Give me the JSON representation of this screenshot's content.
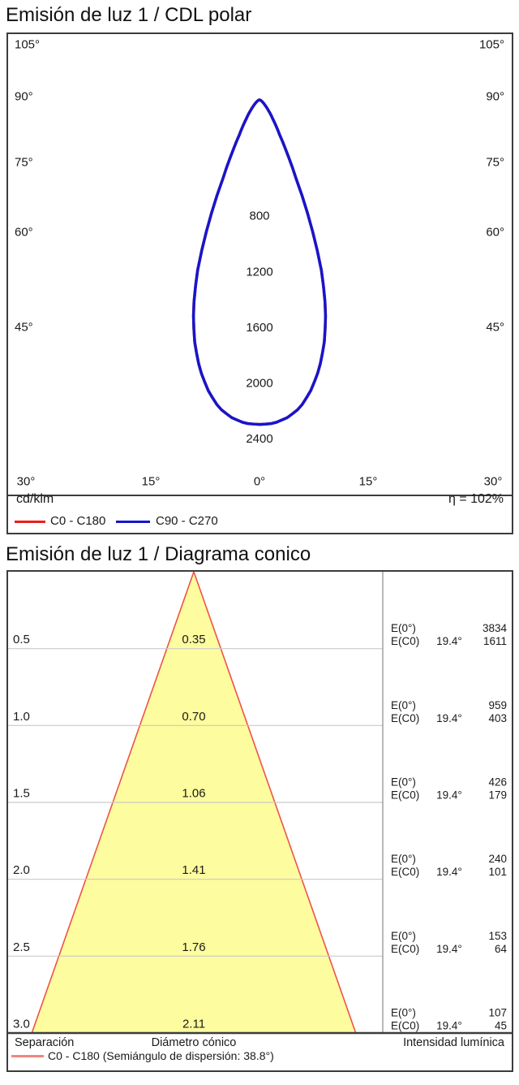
{
  "polar": {
    "title": "Emisión de luz 1 / CDL polar",
    "unit_label": "cd/klm",
    "efficiency_label": "η = 102%",
    "legend": [
      {
        "label": "C0 - C180",
        "color": "#ee1c1c"
      },
      {
        "label": "C90 - C270",
        "color": "#1616cc"
      }
    ],
    "angle_ticks": [
      "105°",
      "90°",
      "75°",
      "60°",
      "45°",
      "30°",
      "15°",
      "0°"
    ],
    "ring_labels": [
      "800",
      "1200",
      "1600",
      "2000",
      "2400"
    ],
    "chart_data": {
      "type": "line",
      "coordinate_system": "polar",
      "title": "Emisión de luz 1 / CDL polar",
      "radial_axis": {
        "unit": "cd/klm",
        "min": 0,
        "max": 2800,
        "ring_step": 400,
        "labeled_rings": [
          800,
          1200,
          1600,
          2000,
          2400
        ]
      },
      "angular_axis": {
        "unit": "deg",
        "tick_step": 15,
        "labeled_ticks": [
          0,
          15,
          30,
          45,
          60,
          75,
          90,
          105
        ]
      },
      "efficiency_percent": 102,
      "series": [
        {
          "name": "C0 - C180",
          "color": "#ee1c1c",
          "gamma_deg": [
            0,
            2.5,
            5,
            7.5,
            10,
            12.5,
            15,
            17.5,
            20,
            22.5,
            25,
            27.5,
            30,
            32.5,
            35,
            40,
            45,
            50,
            55,
            60,
            65,
            70,
            75,
            80,
            85,
            90
          ],
          "cd_per_klm": [
            2330,
            2325,
            2290,
            2230,
            2120,
            1980,
            1800,
            1580,
            1300,
            950,
            620,
            420,
            290,
            220,
            165,
            100,
            62,
            40,
            27,
            18,
            12,
            8,
            5,
            3,
            1.5,
            0
          ]
        },
        {
          "name": "C90 - C270",
          "color": "#1616cc",
          "gamma_deg": [
            0,
            2.5,
            5,
            7.5,
            10,
            12.5,
            15,
            17.5,
            20,
            22.5,
            25,
            27.5,
            30,
            32.5,
            35,
            40,
            45,
            50,
            55,
            60,
            65,
            70,
            75,
            80,
            85,
            90
          ],
          "cd_per_klm": [
            2330,
            2325,
            2290,
            2230,
            2120,
            1980,
            1800,
            1580,
            1300,
            950,
            620,
            420,
            290,
            220,
            165,
            100,
            62,
            40,
            27,
            18,
            12,
            8,
            5,
            3,
            1.5,
            0
          ]
        }
      ]
    }
  },
  "cone": {
    "title": "Emisión de luz 1 / Diagrama conico",
    "rows": [
      {
        "separation": "0.5",
        "diameter": "0.35",
        "e0_label": "E(0°)",
        "e0": "3834",
        "ec0_label": "E(C0)",
        "angle": "19.4°",
        "ec0": "1611"
      },
      {
        "separation": "1.0",
        "diameter": "0.70",
        "e0_label": "E(0°)",
        "e0": "959",
        "ec0_label": "E(C0)",
        "angle": "19.4°",
        "ec0": "403"
      },
      {
        "separation": "1.5",
        "diameter": "1.06",
        "e0_label": "E(0°)",
        "e0": "426",
        "ec0_label": "E(C0)",
        "angle": "19.4°",
        "ec0": "179"
      },
      {
        "separation": "2.0",
        "diameter": "1.41",
        "e0_label": "E(0°)",
        "e0": "240",
        "ec0_label": "E(C0)",
        "angle": "19.4°",
        "ec0": "101"
      },
      {
        "separation": "2.5",
        "diameter": "1.76",
        "e0_label": "E(0°)",
        "e0": "153",
        "ec0_label": "E(C0)",
        "angle": "19.4°",
        "ec0": "64"
      },
      {
        "separation": "3.0",
        "diameter": "2.11",
        "e0_label": "E(0°)",
        "e0": "107",
        "ec0_label": "E(C0)",
        "angle": "19.4°",
        "ec0": "45"
      }
    ],
    "footer": {
      "separation": "Separación",
      "diameter": "Diámetro cónico",
      "intensity": "Intensidad lumínica"
    },
    "legend_label": "C0 - C180 (Semiángulo de dispersión: 38.8°)",
    "chart_data": {
      "type": "area",
      "title": "Emisión de luz 1 / Diagrama conico",
      "cone_half_angle_deg": 19.4,
      "separations_m": [
        0.5,
        1.0,
        1.5,
        2.0,
        2.5,
        3.0
      ],
      "cone_diameters_m": [
        0.35,
        0.7,
        1.06,
        1.41,
        1.76,
        2.11
      ],
      "E0_lux": [
        3834,
        959,
        426,
        240,
        153,
        107
      ],
      "EC0_lux": [
        1611,
        403,
        179,
        101,
        64,
        45
      ],
      "EC0_angle_deg": 19.4,
      "dispersion_semi_angle_deg": 38.8,
      "xlabel": "Separación",
      "ylabel": "Intensidad lumínica"
    }
  },
  "colors": {
    "frame": "#3c3c3c",
    "grid": "#c9c9c9",
    "curve_blue": "#1616cc",
    "curve_red": "#ee1c1c",
    "cone_fill": "#fdfc9e",
    "cone_stroke": "#ee5348",
    "cone_legend_swatch": "#f2847c",
    "text": "#1a1a1a"
  }
}
